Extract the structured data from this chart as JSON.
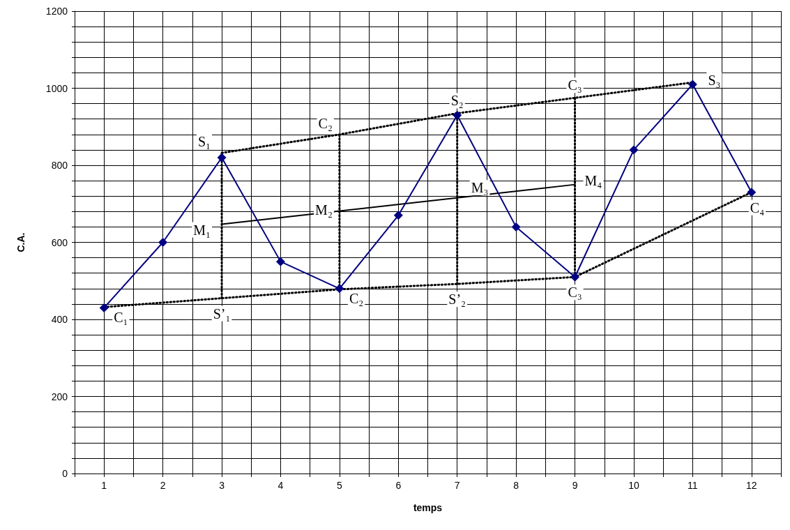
{
  "chart_data": {
    "type": "line",
    "xlabel": "temps",
    "ylabel": "C.A.",
    "xlim": [
      0.5,
      12.5
    ],
    "xticks": [
      {
        "value": 0.5,
        "label": null
      },
      1,
      {
        "value": 1.5,
        "label": null
      },
      2,
      {
        "value": 2.5,
        "label": null
      },
      3,
      {
        "value": 3.5,
        "label": null
      },
      4,
      {
        "value": 4.5,
        "label": null
      },
      5,
      {
        "value": 5.5,
        "label": null
      },
      6,
      {
        "value": 6.5,
        "label": null
      },
      7,
      {
        "value": 7.5,
        "label": null
      },
      8,
      {
        "value": 8.5,
        "label": null
      },
      9,
      {
        "value": 9.5,
        "label": null
      },
      10,
      {
        "value": 10.5,
        "label": null
      },
      11,
      {
        "value": 11.5,
        "label": null
      },
      12,
      {
        "value": 12.5,
        "label": null
      }
    ],
    "ylim": [
      0,
      1200
    ],
    "yticks": [
      0,
      {
        "value": 40,
        "label": null
      },
      {
        "value": 80,
        "label": null
      },
      {
        "value": 120,
        "label": null
      },
      {
        "value": 160,
        "label": null
      },
      200,
      {
        "value": 240,
        "label": null
      },
      {
        "value": 280,
        "label": null
      },
      {
        "value": 320,
        "label": null
      },
      {
        "value": 360,
        "label": null
      },
      400,
      {
        "value": 440,
        "label": null
      },
      {
        "value": 480,
        "label": null
      },
      {
        "value": 520,
        "label": null
      },
      {
        "value": 560,
        "label": null
      },
      600,
      {
        "value": 640,
        "label": null
      },
      {
        "value": 680,
        "label": null
      },
      {
        "value": 720,
        "label": null
      },
      {
        "value": 760,
        "label": null
      },
      800,
      {
        "value": 840,
        "label": null
      },
      {
        "value": 880,
        "label": null
      },
      {
        "value": 920,
        "label": null
      },
      {
        "value": 960,
        "label": null
      },
      1000,
      {
        "value": 1040,
        "label": null
      },
      {
        "value": 1080,
        "label": null
      },
      {
        "value": 1120,
        "label": null
      },
      {
        "value": 1160,
        "label": null
      },
      1200
    ],
    "grid": true,
    "series": [
      {
        "color": "#000080",
        "marker": "diamond",
        "line_style": "solid",
        "x": [
          1,
          2,
          3,
          4,
          5,
          6,
          7,
          8,
          9,
          10,
          11,
          12
        ],
        "values": [
          430,
          600,
          820,
          550,
          480,
          670,
          930,
          640,
          510,
          840,
          1010,
          730
        ]
      },
      {
        "type": "line",
        "color": "#000000",
        "marker": "none",
        "line_style": "dotted",
        "x": [
          3,
          5,
          7,
          9,
          11
        ],
        "values": [
          832,
          880,
          935,
          975,
          1015
        ]
      },
      {
        "type": "line",
        "color": "#000000",
        "marker": "none",
        "line_style": "dotted",
        "x": [
          1,
          3,
          5,
          7,
          9,
          12
        ],
        "values": [
          432,
          455,
          478,
          492,
          510,
          730
        ]
      },
      {
        "type": "line",
        "color": "#000000",
        "marker": "none",
        "line_style": "solid",
        "x": [
          3,
          9
        ],
        "values": [
          647,
          750
        ]
      },
      {
        "type": "line",
        "color": "#000000",
        "marker": "none",
        "line_style": "dotted",
        "x": [
          3,
          3
        ],
        "values": [
          455,
          832
        ]
      },
      {
        "type": "line",
        "color": "#000000",
        "marker": "none",
        "line_style": "dotted",
        "x": [
          5,
          5
        ],
        "values": [
          478,
          880
        ]
      },
      {
        "type": "line",
        "color": "#000000",
        "marker": "none",
        "line_style": "dotted",
        "x": [
          7,
          7
        ],
        "values": [
          492,
          935
        ]
      },
      {
        "type": "line",
        "color": "#000000",
        "marker": "none",
        "line_style": "dotted",
        "x": [
          9,
          9
        ],
        "values": [
          510,
          975
        ]
      }
    ],
    "annotations": [
      {
        "text": "C₁",
        "x": 1,
        "y": 430
      },
      {
        "text": "S₁",
        "x": 3,
        "y": 832
      },
      {
        "text": "S’₁",
        "x": 3,
        "y": 455
      },
      {
        "text": "M₁",
        "x": 3,
        "y": 647
      },
      {
        "text": "C₂",
        "x": 5,
        "y": 880
      },
      {
        "text": "M₂",
        "x": 5,
        "y": 685
      },
      {
        "text": "C₂",
        "x": 5,
        "y": 480
      },
      {
        "text": "S₂",
        "x": 7,
        "y": 935
      },
      {
        "text": "M₃",
        "x": 7,
        "y": 720
      },
      {
        "text": "S’₂",
        "x": 7,
        "y": 492
      },
      {
        "text": "C₃",
        "x": 9,
        "y": 975
      },
      {
        "text": "M₄",
        "x": 9,
        "y": 750
      },
      {
        "text": "C₃",
        "x": 9,
        "y": 510
      },
      {
        "text": "S₃",
        "x": 11,
        "y": 1010
      },
      {
        "text": "C₄",
        "x": 12,
        "y": 730
      }
    ]
  }
}
